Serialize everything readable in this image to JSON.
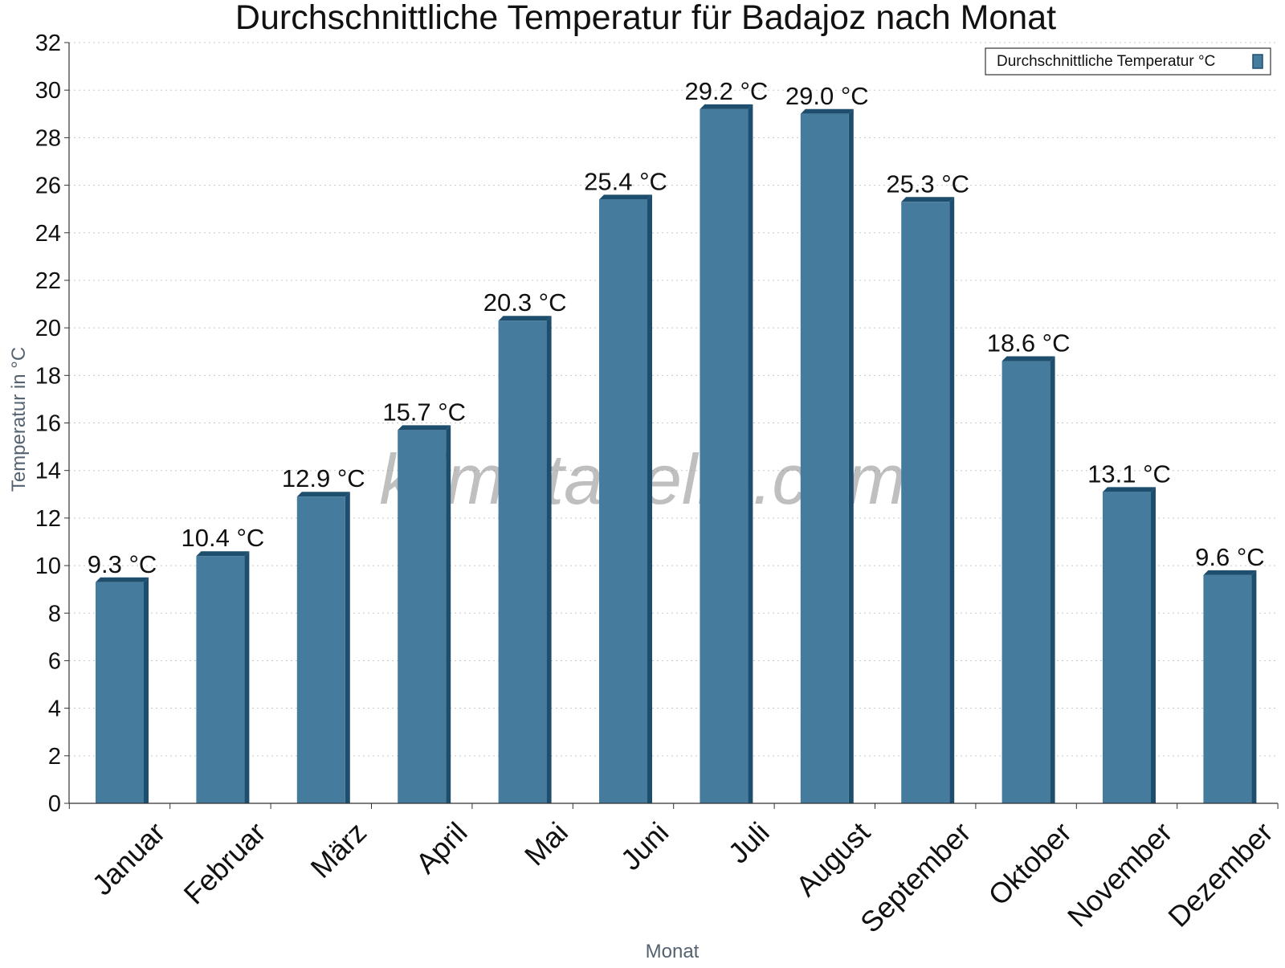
{
  "chart_data": {
    "type": "bar",
    "title": "Durchschnittliche Temperatur für Badajoz nach Monat",
    "xlabel": "Monat",
    "ylabel": "Temperatur in °C",
    "categories": [
      "Januar",
      "Februar",
      "März",
      "April",
      "Mai",
      "Juni",
      "Juli",
      "August",
      "September",
      "Oktober",
      "November",
      "Dezember"
    ],
    "series": [
      {
        "name": "Durchschnittliche Temperatur °C",
        "values": [
          9.3,
          10.4,
          12.9,
          15.7,
          20.3,
          25.4,
          29.2,
          29.0,
          25.3,
          18.6,
          13.1,
          9.6
        ],
        "value_labels": [
          "9.3 °C",
          "10.4 °C",
          "12.9 °C",
          "15.7 °C",
          "20.3 °C",
          "25.4 °C",
          "29.2 °C",
          "29.0 °C",
          "25.3 °C",
          "18.6 °C",
          "13.1 °C",
          "9.6 °C"
        ]
      }
    ],
    "ylim": [
      0,
      32
    ],
    "yticks": [
      0,
      2,
      4,
      6,
      8,
      10,
      12,
      14,
      16,
      18,
      20,
      22,
      24,
      26,
      28,
      30,
      32
    ],
    "grid": true,
    "legend_position": "top-right",
    "bar_color": "#457b9d",
    "bar_side_color": "#1d4e6e",
    "watermark": "klimatabelle.com"
  }
}
